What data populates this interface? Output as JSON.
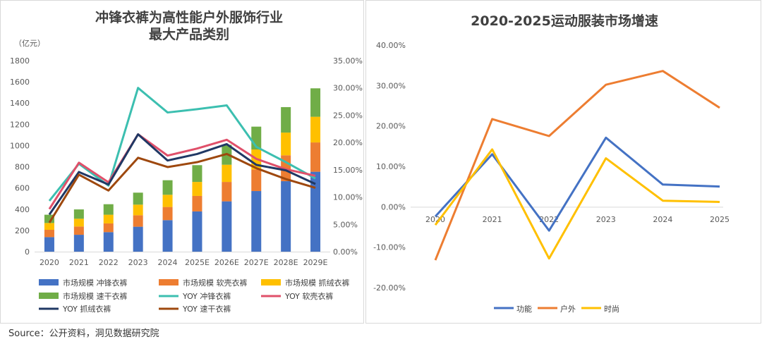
{
  "source": "Source：公开资料，洞见数据研究院",
  "chart_data": [
    {
      "type": "bar",
      "stacked": true,
      "title": [
        "冲锋衣裤为高性能户外服饰行业",
        "最大产品类别"
      ],
      "ylabel": "（亿元）",
      "ylim": [
        0,
        1800
      ],
      "yticks": [
        "0",
        "200",
        "400",
        "600",
        "800",
        "1000",
        "1200",
        "1400",
        "1600",
        "1800"
      ],
      "y2lim": [
        0,
        35
      ],
      "y2ticks": [
        "0.00%",
        "5.00%",
        "10.00%",
        "15.00%",
        "20.00%",
        "25.00%",
        "30.00%",
        "35.00%"
      ],
      "grid": false,
      "legend": "bottom",
      "categories": [
        "2020",
        "2021",
        "2022",
        "2023",
        "2024",
        "2025E",
        "2026E",
        "2027E",
        "2028E",
        "2029E"
      ],
      "series": [
        {
          "name": "市场规模 冲锋衣裤",
          "kind": "bar",
          "color": "#4472C4",
          "values": [
            137,
            159,
            184,
            235,
            297,
            379,
            474,
            571,
            664,
            753
          ]
        },
        {
          "name": "市场规模 软壳衣裤",
          "kind": "bar",
          "color": "#ED7D31",
          "values": [
            69,
            78,
            82,
            108,
            124,
            146,
            183,
            204,
            244,
            276
          ]
        },
        {
          "name": "市场规模 抓绒衣裤",
          "kind": "bar",
          "color": "#FFC000",
          "values": [
            64,
            73,
            82,
            100,
            115,
            132,
            162,
            188,
            214,
            242
          ]
        },
        {
          "name": "市场规模 速干衣裤",
          "kind": "bar",
          "color": "#70AD47",
          "values": [
            78,
            88,
            99,
            113,
            137,
            158,
            188,
            215,
            240,
            268
          ]
        },
        {
          "name": "YOY 冲锋衣裤",
          "kind": "line",
          "axis": "right",
          "color": "#3CBFB0",
          "values": [
            9.3,
            16.1,
            12.1,
            30.0,
            25.5,
            26.1,
            26.8,
            19.2,
            16.4,
            13.4
          ]
        },
        {
          "name": "YOY 软壳衣裤",
          "kind": "line",
          "axis": "right",
          "color": "#E0506A",
          "values": [
            7.8,
            16.3,
            12.7,
            21.5,
            17.6,
            18.9,
            20.5,
            17.0,
            15.1,
            13.9
          ]
        },
        {
          "name": "YOY 抓绒衣裤",
          "kind": "line",
          "axis": "right",
          "color": "#203864",
          "values": [
            6.8,
            14.6,
            12.3,
            21.5,
            16.7,
            17.9,
            19.7,
            15.9,
            14.9,
            12.4
          ]
        },
        {
          "name": "YOY 速干衣裤",
          "kind": "line",
          "axis": "right",
          "color": "#9E480E",
          "values": [
            5.3,
            14.1,
            11.2,
            17.2,
            15.5,
            16.4,
            17.9,
            15.3,
            13.3,
            11.7
          ]
        }
      ]
    },
    {
      "type": "line",
      "title": "2020-2025运动服装市场增速",
      "ylim": [
        -20,
        40
      ],
      "yticks": [
        "-20.00%",
        "-10.00%",
        "0.00%",
        "10.00%",
        "20.00%",
        "30.00%",
        "40.00%"
      ],
      "grid": false,
      "legend": "bottom",
      "categories": [
        "2020",
        "2021",
        "2022",
        "2023",
        "2024",
        "2025"
      ],
      "series": [
        {
          "name": "功能",
          "color": "#4472C4",
          "values": [
            -2.4,
            13.0,
            -5.9,
            17.1,
            5.5,
            5.0
          ]
        },
        {
          "name": "户外",
          "color": "#ED7D31",
          "values": [
            -13.2,
            21.7,
            17.5,
            30.2,
            33.6,
            24.5
          ]
        },
        {
          "name": "时尚",
          "color": "#FFC000",
          "values": [
            -4.5,
            14.2,
            -12.8,
            12.0,
            1.5,
            1.2
          ]
        }
      ]
    }
  ]
}
